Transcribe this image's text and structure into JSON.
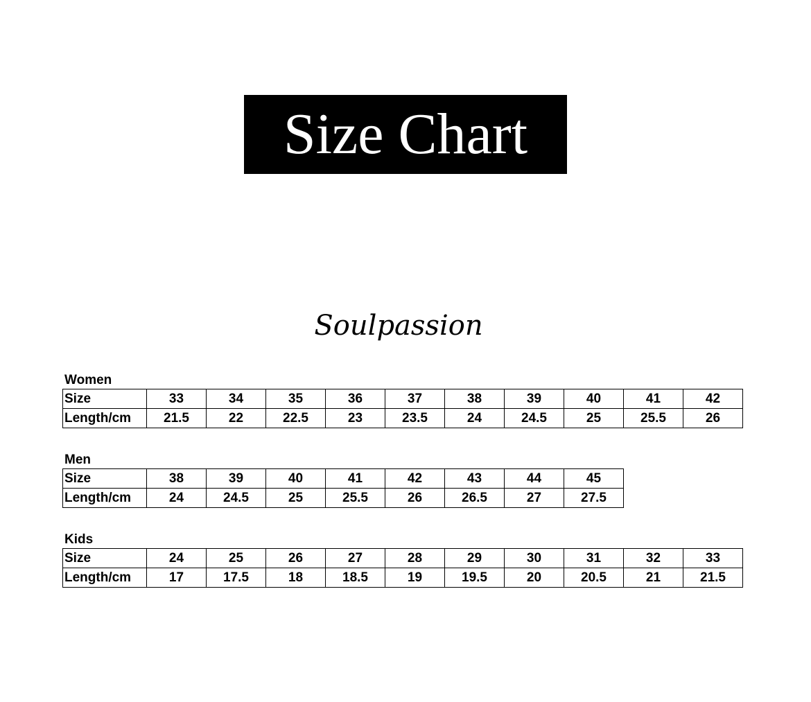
{
  "title": "Size Chart",
  "logo_text": "Soulpassion",
  "sections": [
    {
      "name": "Women",
      "row_labels": [
        "Size",
        "Length/cm"
      ],
      "sizes": [
        "33",
        "34",
        "35",
        "36",
        "37",
        "38",
        "39",
        "40",
        "41",
        "42"
      ],
      "lengths": [
        "21.5",
        "22",
        "22.5",
        "23",
        "23.5",
        "24",
        "24.5",
        "25",
        "25.5",
        "26"
      ]
    },
    {
      "name": "Men",
      "row_labels": [
        "Size",
        "Length/cm"
      ],
      "sizes": [
        "38",
        "39",
        "40",
        "41",
        "42",
        "43",
        "44",
        "45"
      ],
      "lengths": [
        "24",
        "24.5",
        "25",
        "25.5",
        "26",
        "26.5",
        "27",
        "27.5"
      ]
    },
    {
      "name": "Kids",
      "row_labels": [
        "Size",
        "Length/cm"
      ],
      "sizes": [
        "24",
        "25",
        "26",
        "27",
        "28",
        "29",
        "30",
        "31",
        "32",
        "33"
      ],
      "lengths": [
        "17",
        "17.5",
        "18",
        "18.5",
        "19",
        "19.5",
        "20",
        "20.5",
        "21",
        "21.5"
      ]
    }
  ]
}
